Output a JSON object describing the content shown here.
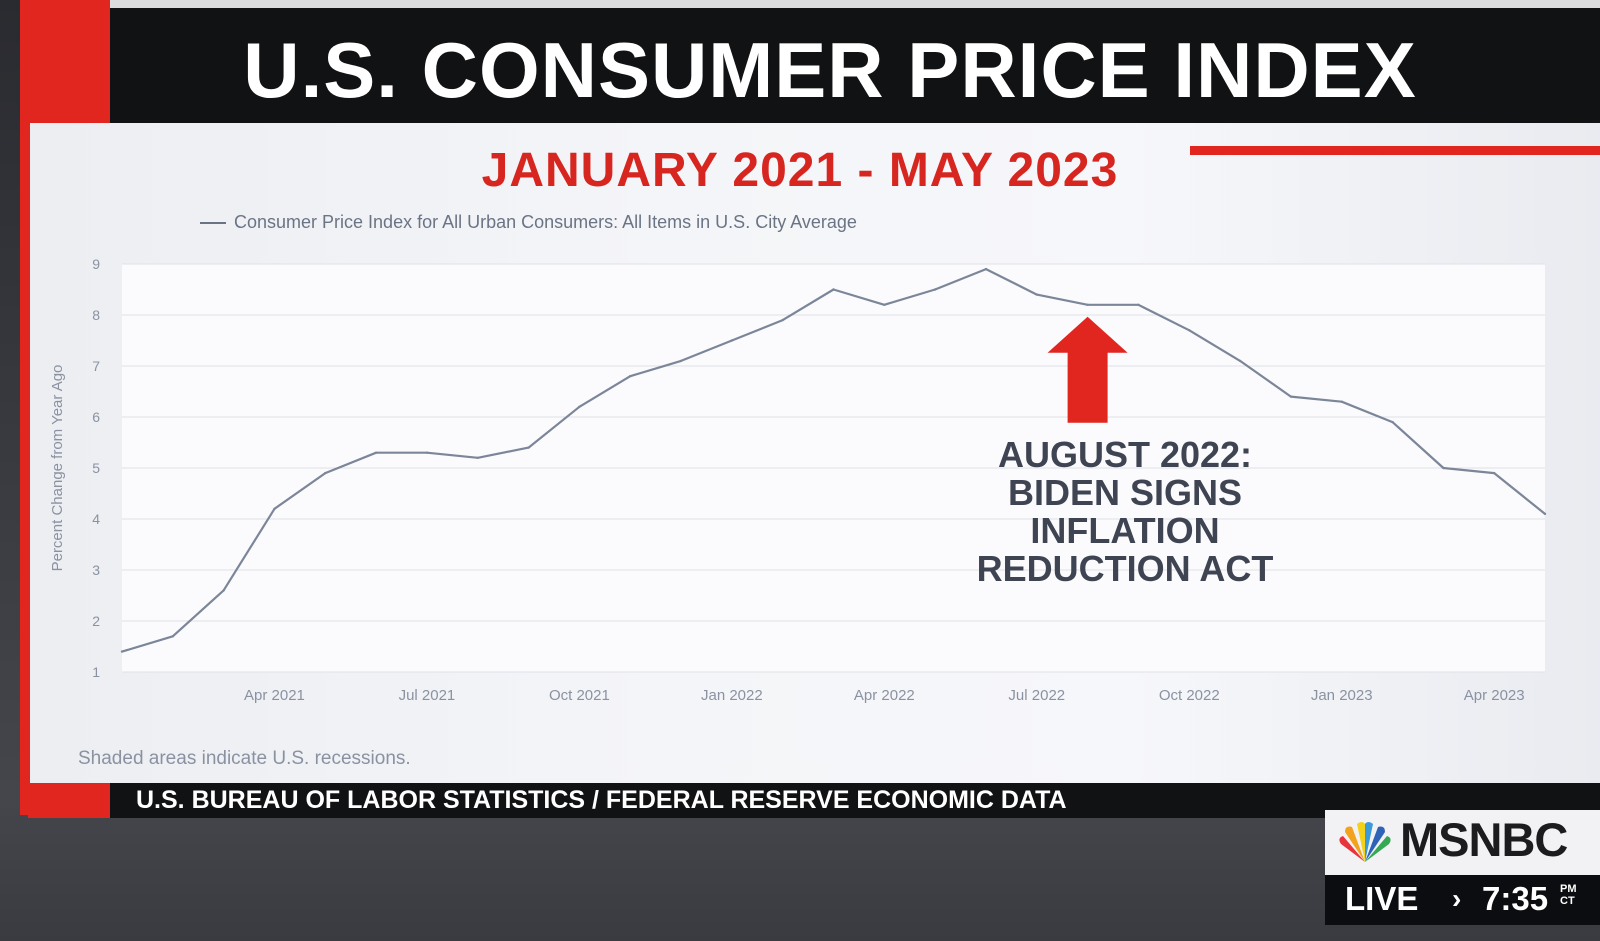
{
  "broadcast": {
    "title": "U.S. CONSUMER PRICE INDEX",
    "subtitle": "JANUARY 2021 - MAY 2023",
    "source": "U.S. BUREAU OF LABOR STATISTICS / FEDERAL RESERVE ECONOMIC DATA",
    "footnote": "Shaded areas indicate U.S. recessions.",
    "annotation": [
      "AUGUST 2022:",
      "BIDEN SIGNS",
      "INFLATION",
      "REDUCTION ACT"
    ],
    "network": "MSNBC",
    "live_label": "LIVE",
    "live_chevron": "›",
    "time": "7:35",
    "time_suffix_top": "PM",
    "time_suffix_bottom": "CT"
  },
  "colors": {
    "accent_red": "#e0261f",
    "line": "#7c8699",
    "arrow": "#e0261f"
  },
  "chart_data": {
    "type": "line",
    "title": "JANUARY 2021 - MAY 2023",
    "legend": "Consumer Price Index for All Urban Consumers: All Items in U.S. City Average",
    "xlabel": "",
    "ylabel": "Percent Change from Year Ago",
    "ylim": [
      1,
      9
    ],
    "yticks": [
      1,
      2,
      3,
      4,
      5,
      6,
      7,
      8,
      9
    ],
    "xtick_labels": [
      "Apr 2021",
      "Jul 2021",
      "Oct 2021",
      "Jan 2022",
      "Apr 2022",
      "Jul 2022",
      "Oct 2022",
      "Jan 2023",
      "Apr 2023"
    ],
    "xtick_positions": [
      3,
      6,
      9,
      12,
      15,
      18,
      21,
      24,
      27
    ],
    "x": [
      "Jan 2021",
      "Feb 2021",
      "Mar 2021",
      "Apr 2021",
      "May 2021",
      "Jun 2021",
      "Jul 2021",
      "Aug 2021",
      "Sep 2021",
      "Oct 2021",
      "Nov 2021",
      "Dec 2021",
      "Jan 2022",
      "Feb 2022",
      "Mar 2022",
      "Apr 2022",
      "May 2022",
      "Jun 2022",
      "Jul 2022",
      "Aug 2022",
      "Sep 2022",
      "Oct 2022",
      "Nov 2022",
      "Dec 2022",
      "Jan 2023",
      "Feb 2023",
      "Mar 2023",
      "Apr 2023",
      "May 2023"
    ],
    "series": [
      {
        "name": "Consumer Price Index for All Urban Consumers: All Items in U.S. City Average",
        "values": [
          1.4,
          1.7,
          2.6,
          4.2,
          4.9,
          5.3,
          5.3,
          5.2,
          5.4,
          6.2,
          6.8,
          7.1,
          7.5,
          7.9,
          8.5,
          8.2,
          8.5,
          8.9,
          8.4,
          8.2,
          8.2,
          7.7,
          7.1,
          6.4,
          6.3,
          5.9,
          5.0,
          4.9,
          4.1
        ]
      }
    ],
    "annotations": [
      {
        "x": "Aug 2022",
        "text": "AUGUST 2022: BIDEN SIGNS INFLATION REDUCTION ACT"
      }
    ]
  }
}
